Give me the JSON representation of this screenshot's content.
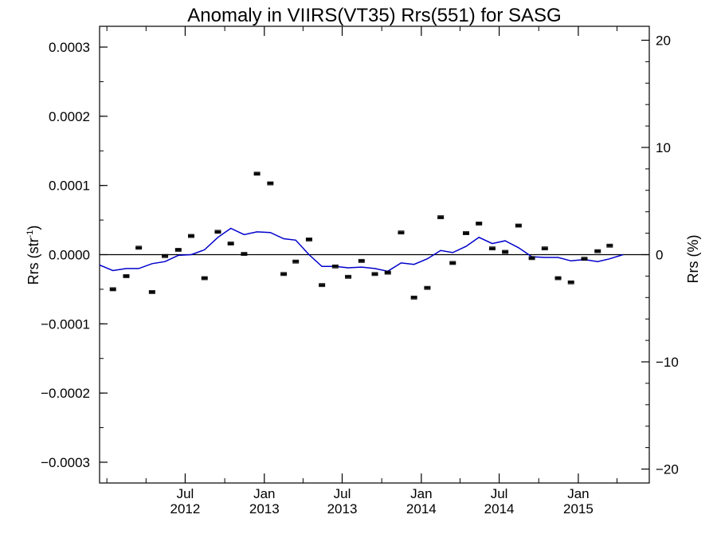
{
  "chart_data": {
    "type": "scatter",
    "title": "Anomaly in VIIRS(VT35) Rrs(551) for SASG",
    "ylabel_base": "Rrs (str",
    "ylabel_sup": "-1",
    "ylabel_close": ")",
    "y2label": "Rrs (%)",
    "xlim": [
      "2011-12-15",
      "2015-06-15"
    ],
    "ylim": [
      -0.00033,
      0.00033
    ],
    "y2lim": [
      -21.3,
      21.3
    ],
    "y_ticks": [
      {
        "value": 0.0003,
        "label": "0.0003"
      },
      {
        "value": 0.0002,
        "label": "0.0002"
      },
      {
        "value": 0.0001,
        "label": "0.0001"
      },
      {
        "value": 0.0,
        "label": "0.0000"
      },
      {
        "value": -0.0001,
        "label": "−0.0001"
      },
      {
        "value": -0.0002,
        "label": "−0.0002"
      },
      {
        "value": -0.0003,
        "label": "−0.0003"
      }
    ],
    "y2_ticks": [
      {
        "value": 20,
        "label": "20"
      },
      {
        "value": 10,
        "label": "10"
      },
      {
        "value": 0,
        "label": "0"
      },
      {
        "value": -10,
        "label": "−10"
      },
      {
        "value": -20,
        "label": "−20"
      }
    ],
    "x_ticks": [
      {
        "date": "2012-07-01",
        "month": "Jul",
        "year": "2012"
      },
      {
        "date": "2013-01-01",
        "month": "Jan",
        "year": "2013"
      },
      {
        "date": "2013-07-01",
        "month": "Jul",
        "year": "2013"
      },
      {
        "date": "2014-01-01",
        "month": "Jan",
        "year": "2014"
      },
      {
        "date": "2014-07-01",
        "month": "Jul",
        "year": "2014"
      },
      {
        "date": "2015-01-01",
        "month": "Jan",
        "year": "2015"
      }
    ],
    "series": [
      {
        "kind": "points",
        "color": "#000000",
        "points": [
          {
            "x": "2012-01-15",
            "y": -5e-05
          },
          {
            "x": "2012-02-15",
            "y": -3.1e-05
          },
          {
            "x": "2012-03-15",
            "y": 1e-05
          },
          {
            "x": "2012-04-15",
            "y": -5.4e-05
          },
          {
            "x": "2012-05-15",
            "y": -2e-06
          },
          {
            "x": "2012-06-15",
            "y": 7e-06
          },
          {
            "x": "2012-07-15",
            "y": 2.7e-05
          },
          {
            "x": "2012-08-15",
            "y": -3.4e-05
          },
          {
            "x": "2012-09-15",
            "y": 3.3e-05
          },
          {
            "x": "2012-10-15",
            "y": 1.6e-05
          },
          {
            "x": "2012-11-15",
            "y": 1e-06
          },
          {
            "x": "2012-12-15",
            "y": 0.000117
          },
          {
            "x": "2013-01-15",
            "y": 0.000103
          },
          {
            "x": "2013-02-15",
            "y": -2.8e-05
          },
          {
            "x": "2013-03-15",
            "y": -1e-05
          },
          {
            "x": "2013-04-15",
            "y": 2.2e-05
          },
          {
            "x": "2013-05-15",
            "y": -4.4e-05
          },
          {
            "x": "2013-06-15",
            "y": -1.7e-05
          },
          {
            "x": "2013-07-15",
            "y": -3.2e-05
          },
          {
            "x": "2013-08-15",
            "y": -9e-06
          },
          {
            "x": "2013-09-15",
            "y": -2.8e-05
          },
          {
            "x": "2013-10-15",
            "y": -2.6e-05
          },
          {
            "x": "2013-11-15",
            "y": 3.2e-05
          },
          {
            "x": "2013-12-15",
            "y": -6.2e-05
          },
          {
            "x": "2014-01-15",
            "y": -4.8e-05
          },
          {
            "x": "2014-02-15",
            "y": 5.4e-05
          },
          {
            "x": "2014-03-15",
            "y": -1.2e-05
          },
          {
            "x": "2014-04-15",
            "y": 3.1e-05
          },
          {
            "x": "2014-05-15",
            "y": 4.5e-05
          },
          {
            "x": "2014-06-15",
            "y": 9e-06
          },
          {
            "x": "2014-07-15",
            "y": 4e-06
          },
          {
            "x": "2014-08-15",
            "y": 4.2e-05
          },
          {
            "x": "2014-09-15",
            "y": -5e-06
          },
          {
            "x": "2014-10-15",
            "y": 9e-06
          },
          {
            "x": "2014-11-15",
            "y": -3.4e-05
          },
          {
            "x": "2014-12-15",
            "y": -4e-05
          },
          {
            "x": "2015-01-15",
            "y": -6e-06
          },
          {
            "x": "2015-02-15",
            "y": 5e-06
          },
          {
            "x": "2015-03-15",
            "y": 1.3e-05
          }
        ]
      },
      {
        "kind": "line",
        "color": "#0000cc",
        "points": [
          {
            "x": "2011-12-15",
            "y": -1.5e-05
          },
          {
            "x": "2012-01-15",
            "y": -2.3e-05
          },
          {
            "x": "2012-02-15",
            "y": -2e-05
          },
          {
            "x": "2012-03-15",
            "y": -2e-05
          },
          {
            "x": "2012-04-15",
            "y": -1.3e-05
          },
          {
            "x": "2012-05-15",
            "y": -1e-05
          },
          {
            "x": "2012-06-15",
            "y": -1e-06
          },
          {
            "x": "2012-07-15",
            "y": 0.0
          },
          {
            "x": "2012-08-15",
            "y": 7e-06
          },
          {
            "x": "2012-09-15",
            "y": 2.5e-05
          },
          {
            "x": "2012-10-15",
            "y": 3.8e-05
          },
          {
            "x": "2012-11-15",
            "y": 2.9e-05
          },
          {
            "x": "2012-12-15",
            "y": 3.3e-05
          },
          {
            "x": "2013-01-15",
            "y": 3.2e-05
          },
          {
            "x": "2013-02-15",
            "y": 2.3e-05
          },
          {
            "x": "2013-03-15",
            "y": 2.1e-05
          },
          {
            "x": "2013-04-15",
            "y": 0.0
          },
          {
            "x": "2013-05-15",
            "y": -1.7e-05
          },
          {
            "x": "2013-06-15",
            "y": -1.7e-05
          },
          {
            "x": "2013-07-15",
            "y": -1.9e-05
          },
          {
            "x": "2013-08-15",
            "y": -1.8e-05
          },
          {
            "x": "2013-09-15",
            "y": -2e-05
          },
          {
            "x": "2013-10-15",
            "y": -2.4e-05
          },
          {
            "x": "2013-11-15",
            "y": -1.2e-05
          },
          {
            "x": "2013-12-15",
            "y": -1.4e-05
          },
          {
            "x": "2014-01-15",
            "y": -6e-06
          },
          {
            "x": "2014-02-15",
            "y": 6e-06
          },
          {
            "x": "2014-03-15",
            "y": 3e-06
          },
          {
            "x": "2014-04-15",
            "y": 1.2e-05
          },
          {
            "x": "2014-05-15",
            "y": 2.5e-05
          },
          {
            "x": "2014-06-15",
            "y": 1.6e-05
          },
          {
            "x": "2014-07-15",
            "y": 2e-05
          },
          {
            "x": "2014-08-15",
            "y": 1e-05
          },
          {
            "x": "2014-09-15",
            "y": -3e-06
          },
          {
            "x": "2014-10-15",
            "y": -4e-06
          },
          {
            "x": "2014-11-15",
            "y": -4e-06
          },
          {
            "x": "2014-12-15",
            "y": -9e-06
          },
          {
            "x": "2015-01-15",
            "y": -7e-06
          },
          {
            "x": "2015-02-15",
            "y": -1e-05
          },
          {
            "x": "2015-03-15",
            "y": -6e-06
          },
          {
            "x": "2015-04-15",
            "y": 0.0
          }
        ]
      }
    ]
  }
}
